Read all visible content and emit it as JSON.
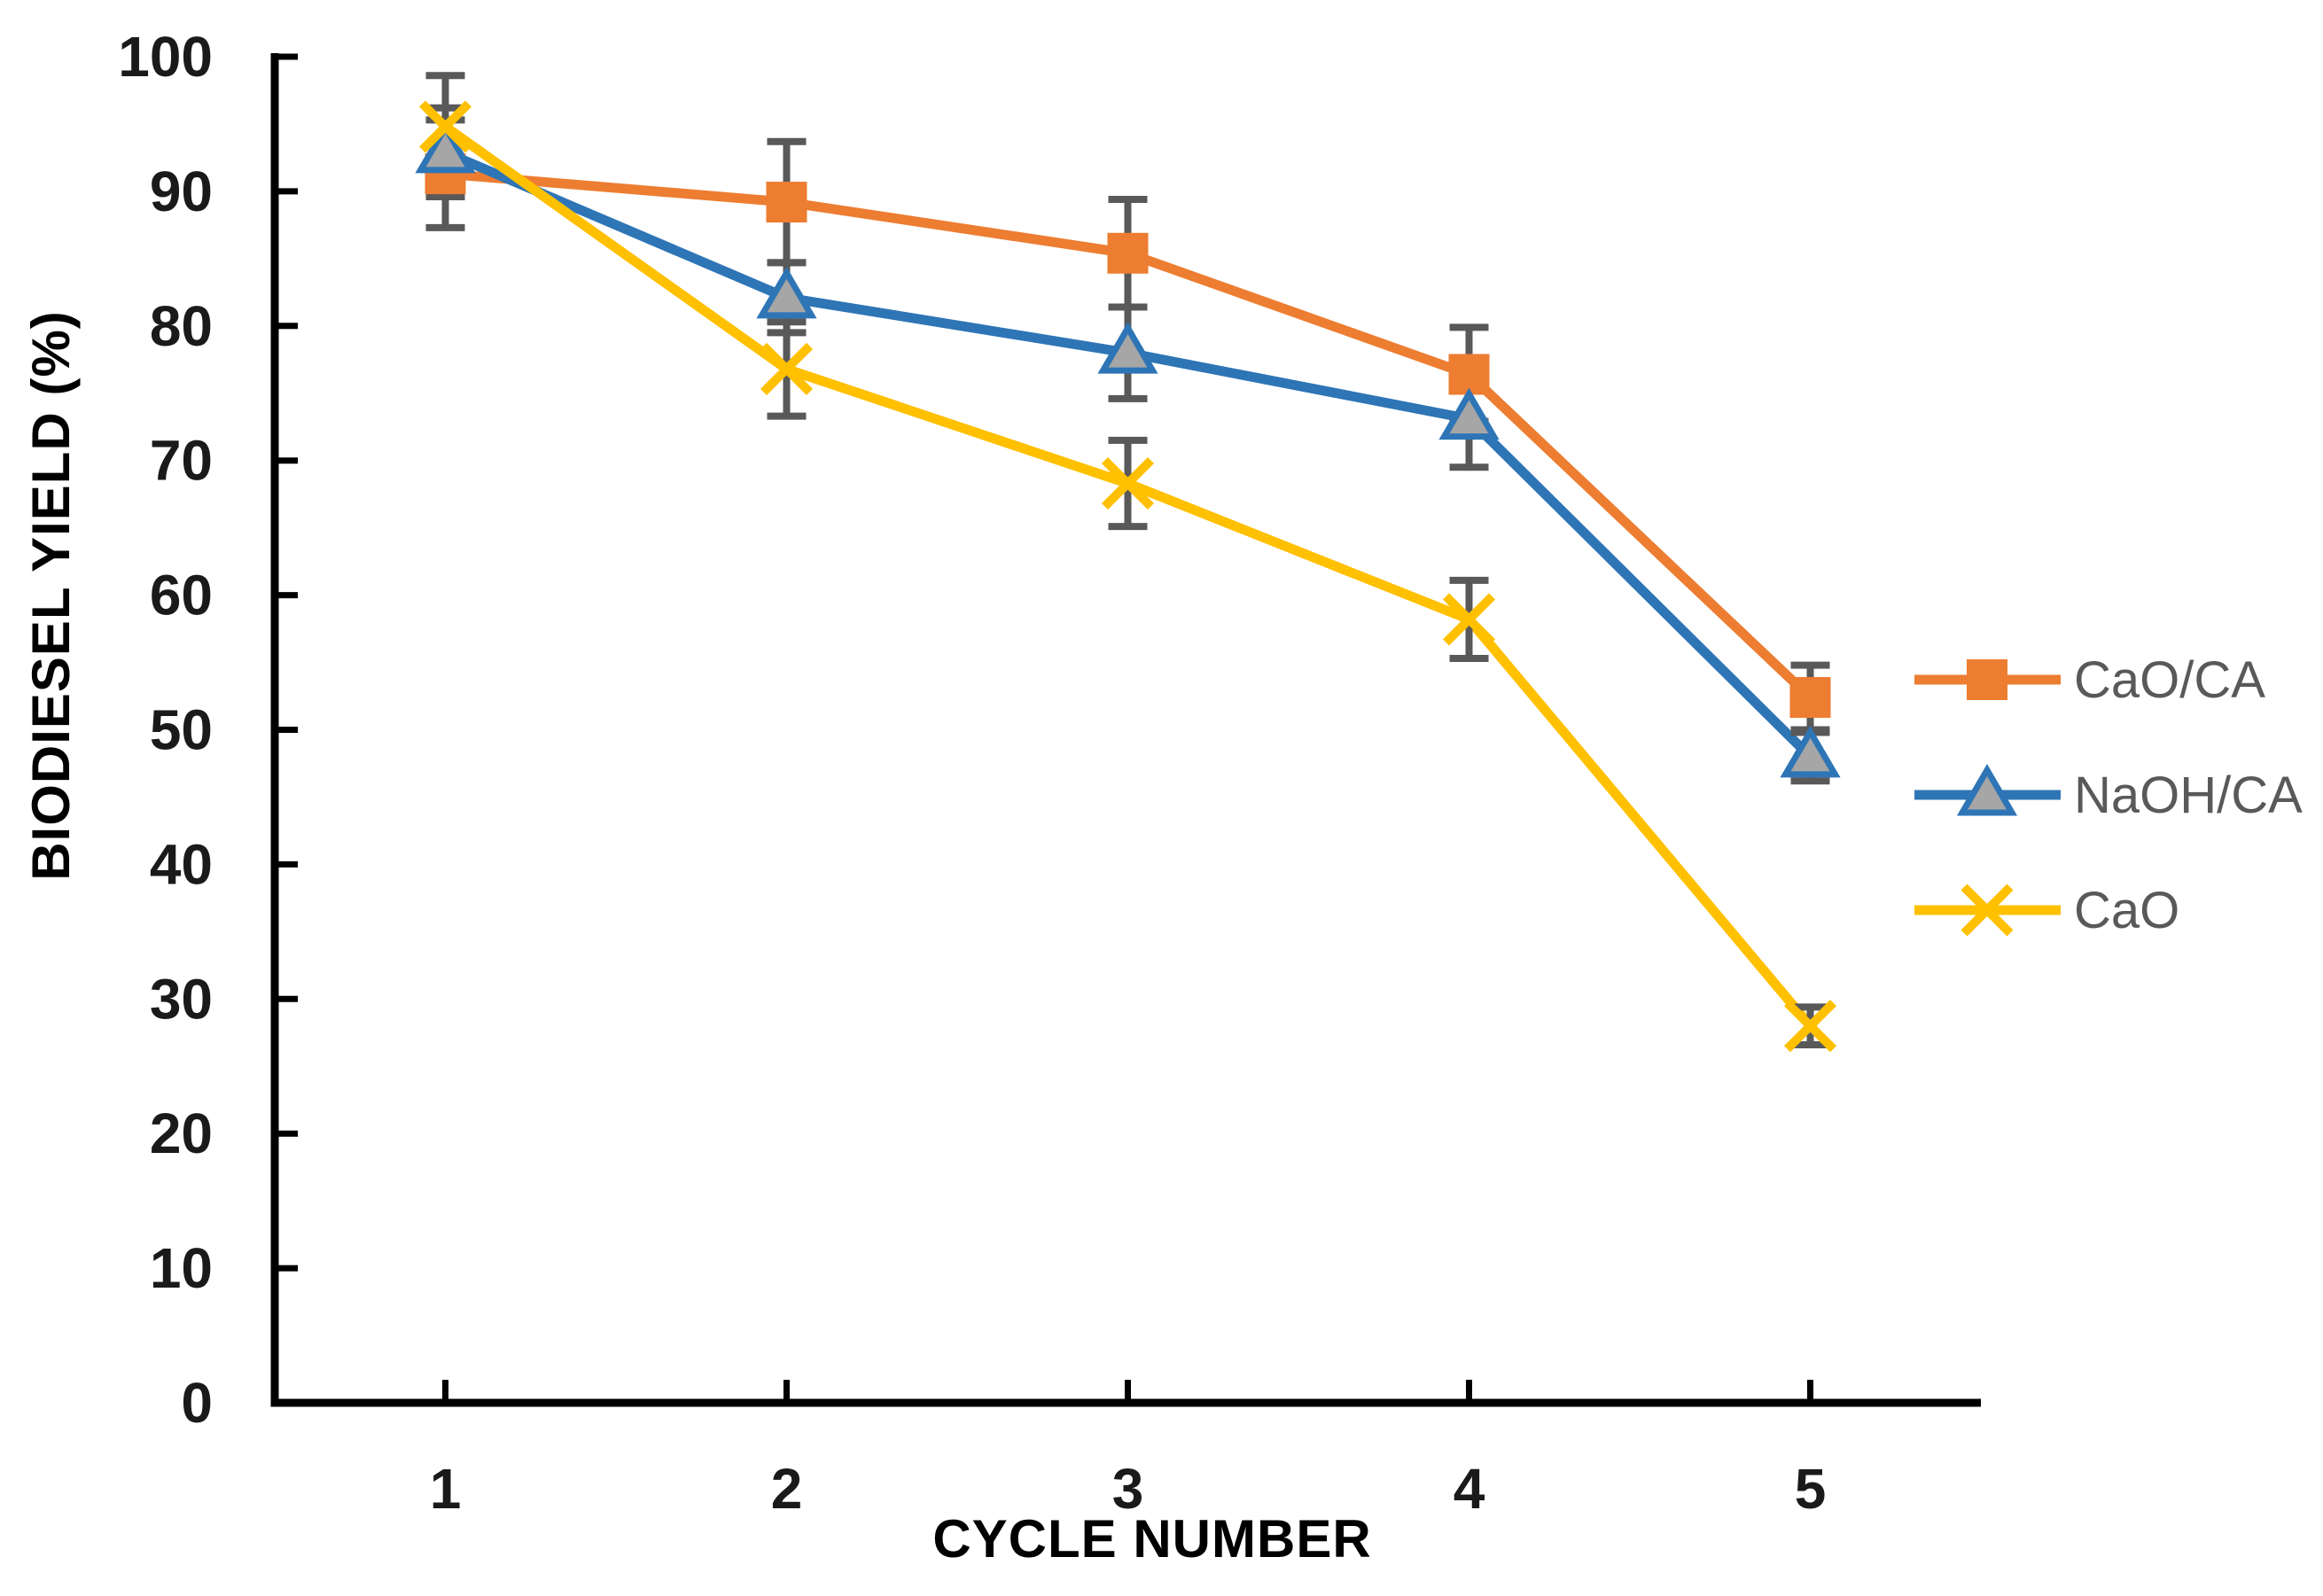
{
  "chart_data": {
    "type": "line",
    "title": "",
    "xlabel": "CYCLE NUMBER",
    "ylabel": "BIODIESEL YIELD (%)",
    "x": [
      1,
      2,
      3,
      4,
      5
    ],
    "xticks": [
      "1",
      "2",
      "3",
      "4",
      "5"
    ],
    "yticks": [
      0,
      10,
      20,
      30,
      40,
      50,
      60,
      70,
      80,
      90,
      100
    ],
    "ylim": [
      0,
      100
    ],
    "grid": false,
    "legend_position": "right",
    "error_bars": true,
    "series": [
      {
        "name": "CaO/CA",
        "marker": "square",
        "color": "#ED7D31",
        "marker_fill": "#ED7D31",
        "values": [
          91.3,
          89.2,
          85.4,
          76.4,
          52.4
        ],
        "errors": [
          4.0,
          4.5,
          4.0,
          3.5,
          2.4
        ]
      },
      {
        "name": "NaOH/CA",
        "marker": "triangle",
        "color": "#2E75B6",
        "marker_fill": "#A6A6A6",
        "values": [
          92.9,
          82.1,
          78.0,
          73.1,
          48.0
        ],
        "errors": [
          3.3,
          2.6,
          3.4,
          3.6,
          1.8
        ]
      },
      {
        "name": "CaO",
        "marker": "x",
        "color": "#FFC000",
        "marker_fill": "#FFC000",
        "values": [
          94.8,
          76.8,
          68.3,
          58.2,
          28.0
        ],
        "errors": [
          3.8,
          3.5,
          3.2,
          2.9,
          1.4
        ]
      }
    ],
    "colors": {
      "axis": "#000000",
      "tick_labels": "#1a1a1a",
      "error_bar": "#595959",
      "legend_text": "#595959",
      "background": "#ffffff"
    }
  }
}
